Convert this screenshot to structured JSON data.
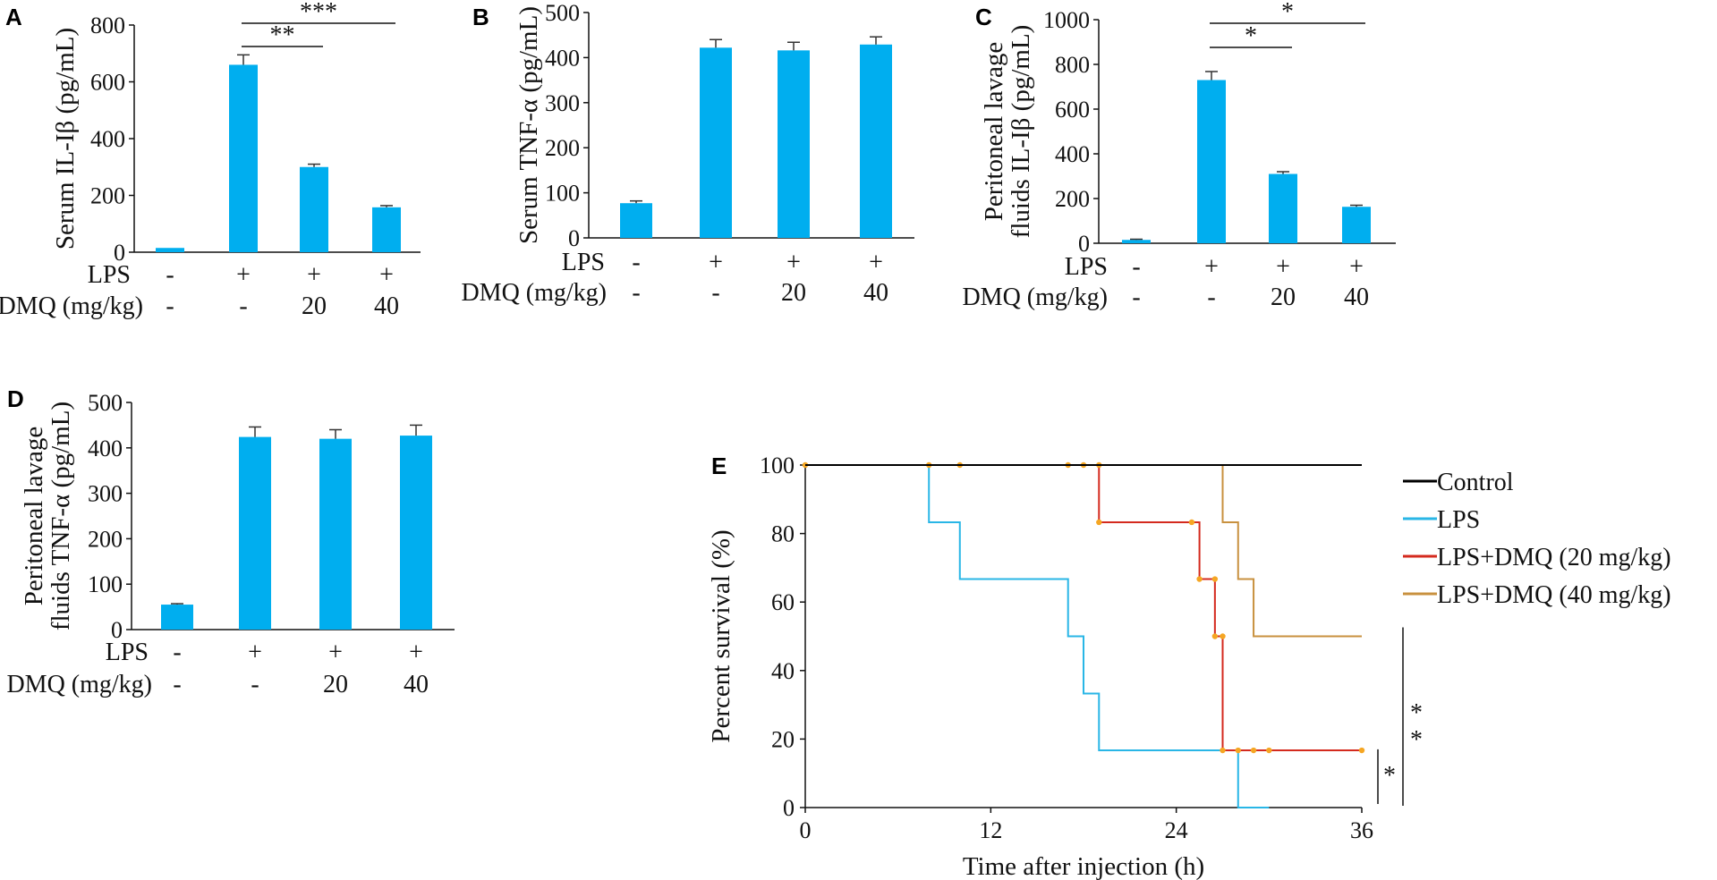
{
  "chart_data": [
    {
      "panel": "A",
      "type": "bar",
      "ylabel": "Serum IL-Iβ (pg/mL)",
      "ylim": [
        0,
        800
      ],
      "yticks": [
        0,
        200,
        400,
        600,
        800
      ],
      "bar_color": "#00aeef",
      "values": [
        15,
        660,
        300,
        158
      ],
      "errors": [
        0,
        35,
        10,
        6
      ],
      "conditions": [
        {
          "label": "LPS",
          "values": [
            "-",
            "+",
            "+",
            "+"
          ]
        },
        {
          "label": "DMQ (mg/kg)",
          "values": [
            "-",
            "-",
            "20",
            "40"
          ]
        }
      ],
      "significance": [
        {
          "from": 1,
          "to": 2,
          "label": "**"
        },
        {
          "from": 1,
          "to": 3,
          "label": "***"
        }
      ]
    },
    {
      "panel": "B",
      "type": "bar",
      "ylabel": "Serum TNF-α (pg/mL)",
      "ylim": [
        0,
        500
      ],
      "yticks": [
        0,
        100,
        200,
        300,
        400,
        500
      ],
      "bar_color": "#00aeef",
      "values": [
        77,
        422,
        416,
        429
      ],
      "errors": [
        5,
        18,
        18,
        17
      ],
      "conditions": [
        {
          "label": "LPS",
          "values": [
            "-",
            "+",
            "+",
            "+"
          ]
        },
        {
          "label": "DMQ (mg/kg)",
          "values": [
            "-",
            "-",
            "20",
            "40"
          ]
        }
      ],
      "significance": []
    },
    {
      "panel": "C",
      "type": "bar",
      "ylabel": [
        "Peritoneal lavage",
        "fluids IL-Iβ (pg/mL)"
      ],
      "ylim": [
        0,
        1000
      ],
      "yticks": [
        0,
        200,
        400,
        600,
        800,
        1000
      ],
      "bar_color": "#00aeef",
      "values": [
        15,
        730,
        310,
        163
      ],
      "errors": [
        3,
        38,
        10,
        7
      ],
      "conditions": [
        {
          "label": "LPS",
          "values": [
            "-",
            "+",
            "+",
            "+"
          ]
        },
        {
          "label": "DMQ (mg/kg)",
          "values": [
            "-",
            "-",
            "20",
            "40"
          ]
        }
      ],
      "significance": [
        {
          "from": 1,
          "to": 2,
          "label": "*"
        },
        {
          "from": 1,
          "to": 3,
          "label": "*"
        }
      ]
    },
    {
      "panel": "D",
      "type": "bar",
      "ylabel": [
        "Peritoneal lavage",
        "fluids TNF-α (pg/mL)"
      ],
      "ylim": [
        0,
        500
      ],
      "yticks": [
        0,
        100,
        200,
        300,
        400,
        500
      ],
      "bar_color": "#00aeef",
      "values": [
        55,
        424,
        420,
        427
      ],
      "errors": [
        2,
        22,
        20,
        23
      ],
      "conditions": [
        {
          "label": "LPS",
          "values": [
            "-",
            "+",
            "+",
            "+"
          ]
        },
        {
          "label": "DMQ (mg/kg)",
          "values": [
            "-",
            "-",
            "20",
            "40"
          ]
        }
      ],
      "significance": []
    },
    {
      "panel": "E",
      "type": "line",
      "subtype": "step",
      "xlabel": "Time after injection (h)",
      "ylabel": "Percent survival (%)",
      "xlim": [
        0,
        36
      ],
      "ylim": [
        0,
        100
      ],
      "xticks": [
        0,
        12,
        24,
        36
      ],
      "yticks": [
        0,
        20,
        40,
        60,
        80,
        100
      ],
      "censor_color": "#f5a623",
      "series": [
        {
          "name": "Control",
          "color": "#000000",
          "points": [
            [
              0,
              100
            ],
            [
              36,
              100
            ]
          ],
          "censors": []
        },
        {
          "name": "LPS",
          "color": "#29b6e6",
          "points": [
            [
              0,
              100
            ],
            [
              8,
              83.3
            ],
            [
              10,
              66.7
            ],
            [
              17,
              50
            ],
            [
              18,
              33.3
            ],
            [
              19,
              16.7
            ],
            [
              28,
              0
            ],
            [
              30,
              0
            ]
          ],
          "censors": []
        },
        {
          "name": "LPS+DMQ (20 mg/kg)",
          "color": "#d42a1e",
          "points": [
            [
              0,
              100
            ],
            [
              19,
              83.3
            ],
            [
              25.5,
              66.7
            ],
            [
              26.5,
              50
            ],
            [
              27,
              16.7
            ],
            [
              36,
              16.7
            ]
          ],
          "censors": [
            [
              0,
              100
            ],
            [
              8,
              100
            ],
            [
              10,
              100
            ],
            [
              17,
              100
            ],
            [
              18,
              100
            ],
            [
              19,
              100
            ],
            [
              19,
              83.3
            ],
            [
              25,
              83.3
            ],
            [
              25.5,
              66.7
            ],
            [
              26.5,
              66.7
            ],
            [
              26.5,
              50
            ],
            [
              27,
              50
            ],
            [
              27,
              16.7
            ],
            [
              28,
              16.7
            ],
            [
              29,
              16.7
            ],
            [
              30,
              16.7
            ],
            [
              36,
              16.7
            ]
          ]
        },
        {
          "name": "LPS+DMQ (40 mg/kg)",
          "color": "#c8913f",
          "points": [
            [
              0,
              100
            ],
            [
              27,
              83.3
            ],
            [
              28,
              66.7
            ],
            [
              29,
              50
            ],
            [
              36,
              50
            ]
          ],
          "censors": []
        }
      ],
      "significance": [
        {
          "label": "*",
          "span": [
            0,
            17
          ]
        },
        {
          "label": "**",
          "span": [
            0,
            50
          ]
        }
      ]
    }
  ]
}
